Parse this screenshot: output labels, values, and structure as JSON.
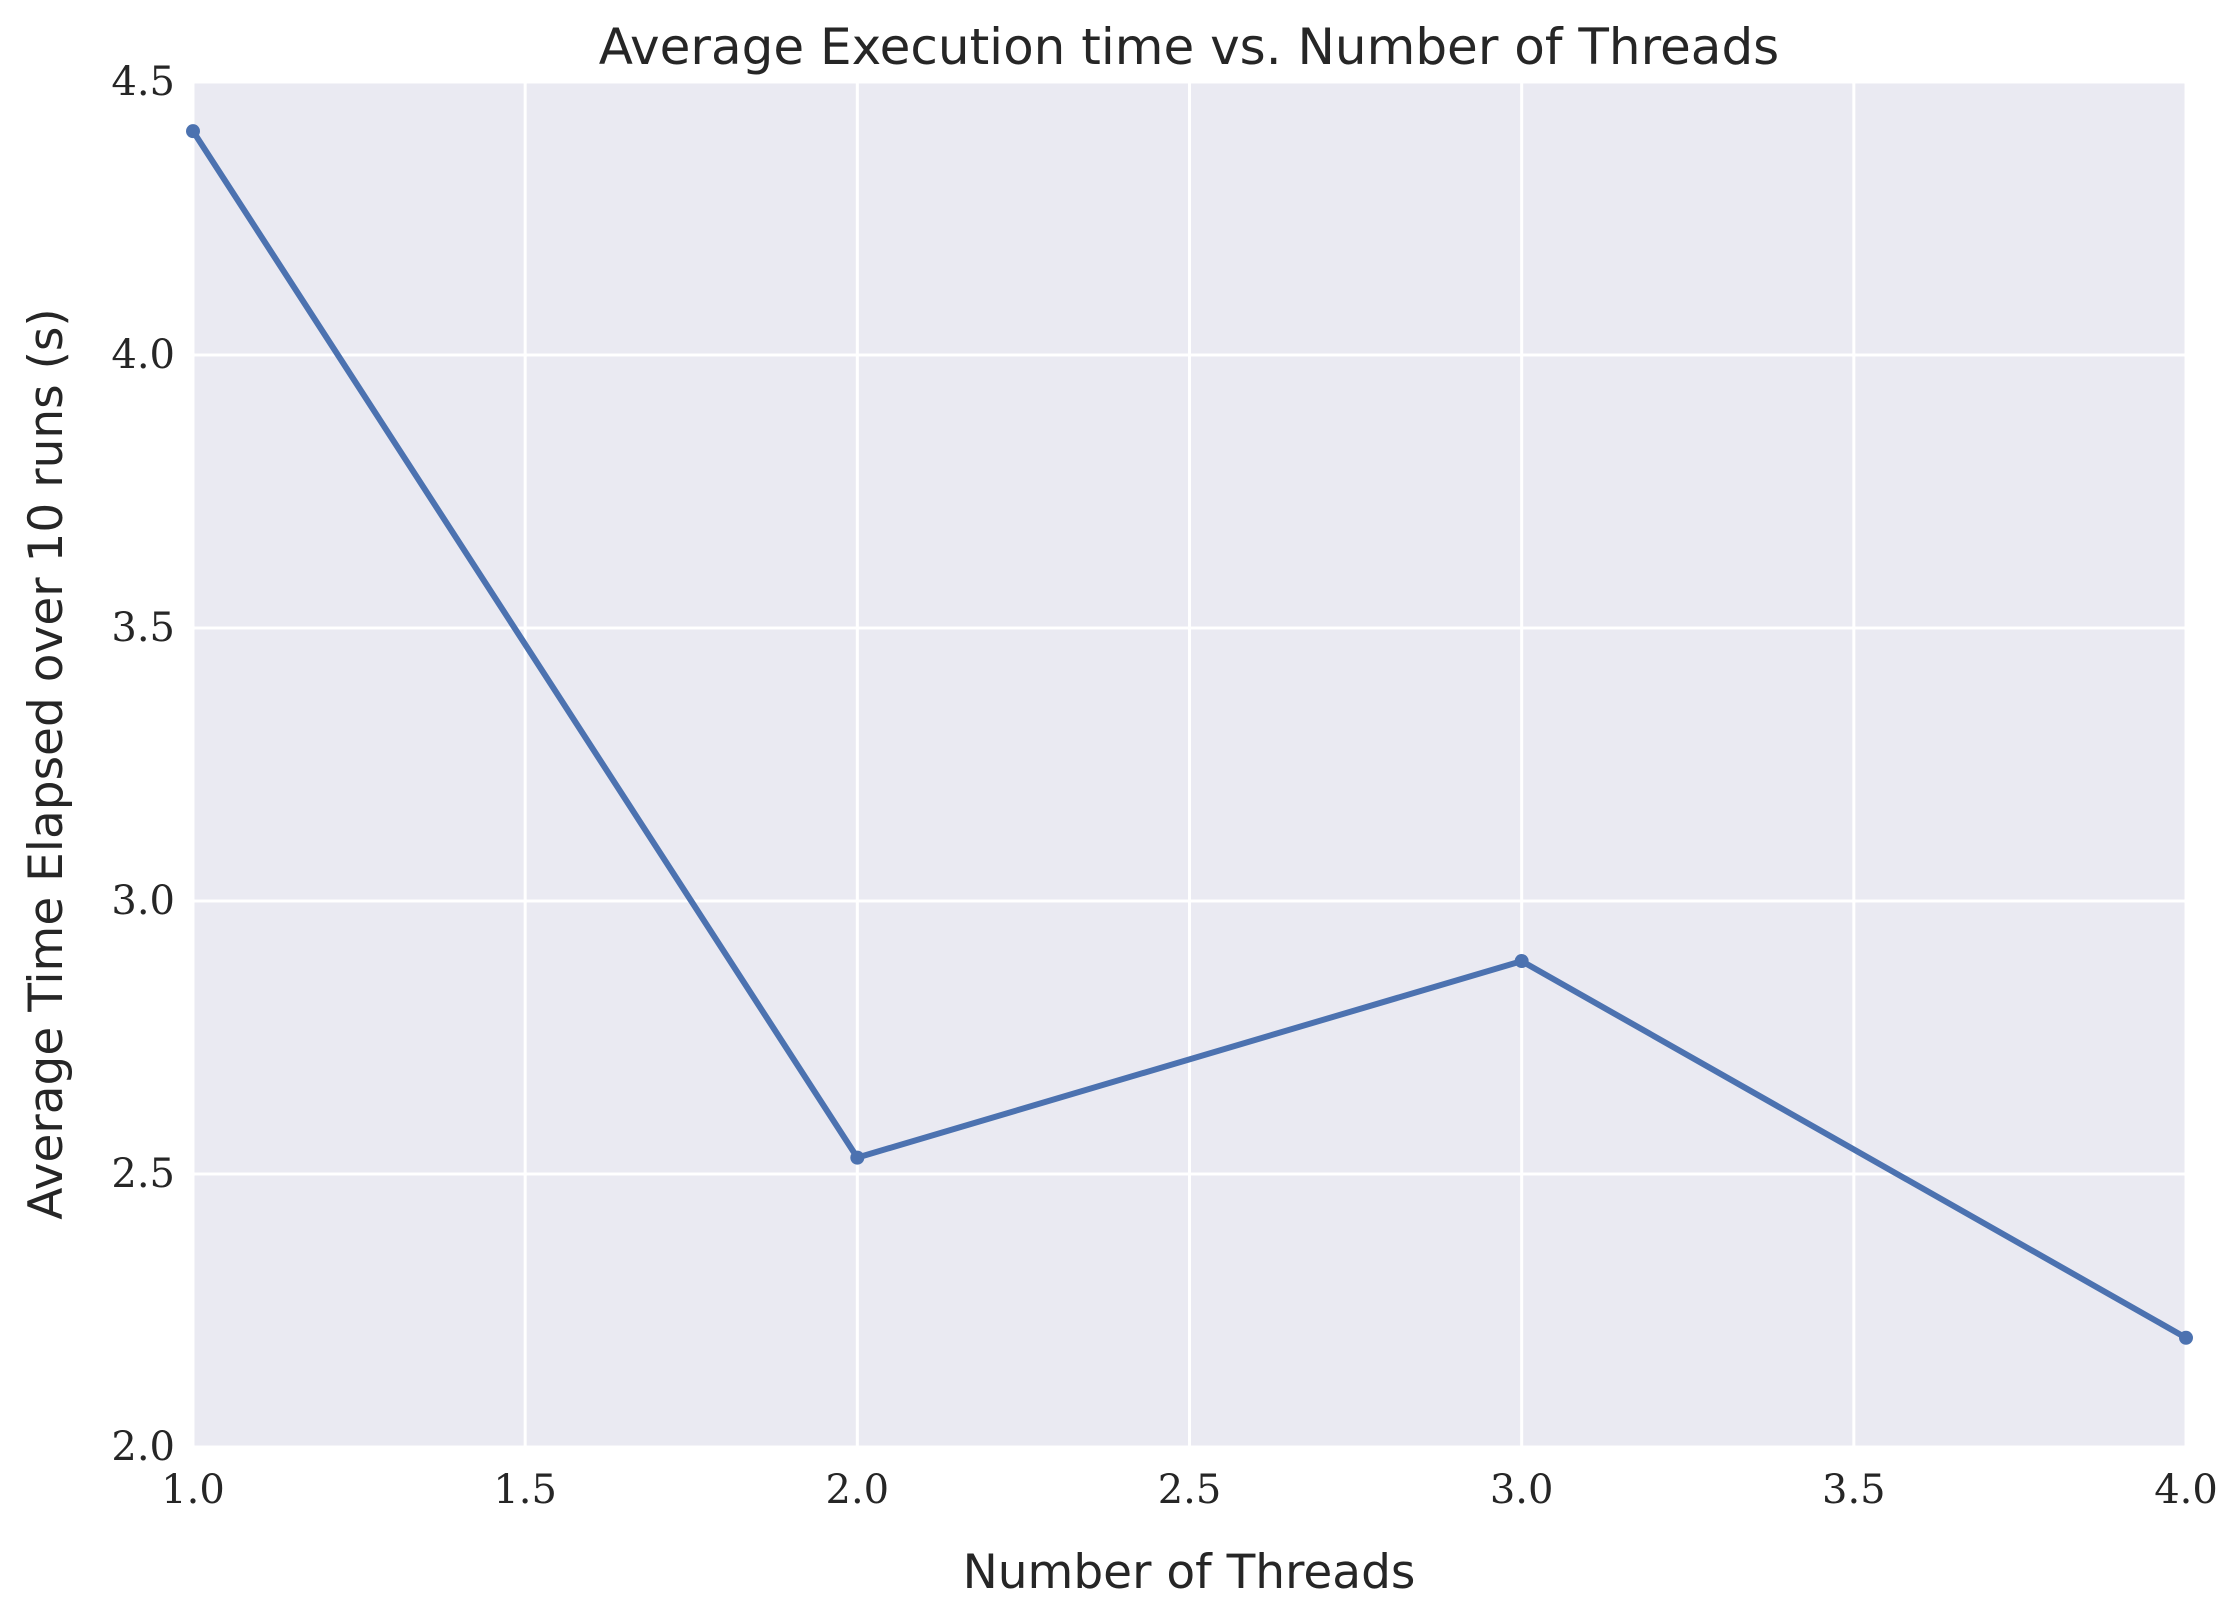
{
  "chart_data": {
    "type": "line",
    "title": "Average Execution time vs. Number of Threads",
    "xlabel": "Number of Threads",
    "ylabel": "Average Time Elapsed over 10 runs (s)",
    "xlim": [
      1.0,
      4.0
    ],
    "ylim": [
      2.0,
      4.5
    ],
    "x_ticks": [
      "1.0",
      "1.5",
      "2.0",
      "2.5",
      "3.0",
      "3.5",
      "4.0"
    ],
    "y_ticks": [
      "2.0",
      "2.5",
      "3.0",
      "3.5",
      "4.0",
      "4.5"
    ],
    "grid": true,
    "series": [
      {
        "x": [
          1,
          2,
          3,
          4
        ],
        "values": [
          4.41,
          2.53,
          2.89,
          2.2
        ]
      }
    ]
  },
  "colors": {
    "plot_background": "#EAEAF2",
    "grid": "#FFFFFF",
    "series_line": "#4C72B0",
    "text": "#262626"
  }
}
